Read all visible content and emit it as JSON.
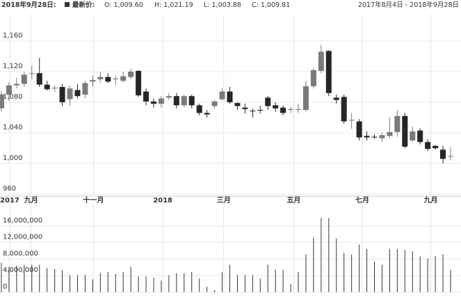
{
  "header": {
    "date": "2018年9月28日:",
    "legend_label": "最新价:",
    "ohlc": [
      "O: 1,009.60",
      "H: 1,021.19",
      "L: 1,003.88",
      "C: 1,009.81"
    ],
    "range": "2017年8月4日 - 2018年9月28日"
  },
  "chart_data": [
    {
      "type": "candlestick",
      "categories": [
        null,
        null,
        null,
        null,
        null,
        null,
        null,
        null,
        null,
        null,
        null,
        null,
        null,
        null,
        null,
        null,
        null,
        null,
        null,
        null,
        null,
        null,
        null,
        null,
        null,
        null,
        null,
        null,
        null,
        null,
        null,
        null,
        null,
        null,
        null,
        null,
        null,
        null,
        null,
        null,
        null,
        null,
        null,
        null,
        null,
        null,
        null,
        null,
        null,
        null,
        null,
        null,
        null,
        null,
        null,
        null,
        null,
        null,
        null,
        null
      ],
      "open": [
        1072,
        1090,
        1102,
        1104,
        1117,
        1118,
        1103,
        1098,
        1100,
        1084,
        1096,
        1090,
        1107,
        1110,
        1113,
        1110,
        1108,
        1113,
        1121,
        1094,
        1081,
        1078,
        1086,
        1088,
        1076,
        1088,
        1076,
        1066,
        1075,
        1084,
        1094,
        1079,
        1073,
        1069,
        1070,
        1086,
        1076,
        1073,
        1070,
        1070,
        1070,
        1101,
        1121,
        1147,
        1086,
        1087,
        1056,
        1055,
        1036,
        1035,
        1033,
        1036,
        1041,
        1062,
        1030,
        1043,
        1028,
        1023,
        1018,
        1009.6
      ],
      "high": [
        1095,
        1106,
        1112,
        1120,
        1128,
        1138,
        1108,
        1102,
        1104,
        1102,
        1104,
        1108,
        1115,
        1120,
        1118,
        1115,
        1120,
        1124,
        1122,
        1098,
        1085,
        1088,
        1092,
        1092,
        1090,
        1090,
        1078,
        1070,
        1083,
        1098,
        1100,
        1080,
        1078,
        1072,
        1075,
        1088,
        1080,
        1076,
        1074,
        1078,
        1108,
        1125,
        1155,
        1148,
        1090,
        1090,
        1066,
        1058,
        1042,
        1038,
        1040,
        1060,
        1070,
        1066,
        1048,
        1046,
        1032,
        1024,
        1023,
        1021.19
      ],
      "low": [
        1068,
        1082,
        1098,
        1100,
        1110,
        1100,
        1095,
        1094,
        1075,
        1075,
        1085,
        1085,
        1100,
        1106,
        1105,
        1102,
        1106,
        1110,
        1087,
        1076,
        1073,
        1073,
        1083,
        1072,
        1073,
        1072,
        1063,
        1060,
        1072,
        1082,
        1078,
        1070,
        1065,
        1060,
        1065,
        1070,
        1067,
        1063,
        1066,
        1066,
        1068,
        1098,
        1118,
        1088,
        1078,
        1052,
        1045,
        1030,
        1030,
        1032,
        1028,
        1033,
        1035,
        1020,
        1028,
        1025,
        1016,
        1018,
        1000,
        1003.88
      ],
      "close": [
        1090,
        1102,
        1104,
        1116,
        1118,
        1103,
        1097,
        1099,
        1080,
        1098,
        1088,
        1105,
        1109,
        1113,
        1107,
        1111,
        1114,
        1120,
        1089,
        1081,
        1078,
        1085,
        1088,
        1076,
        1088,
        1076,
        1066,
        1064,
        1081,
        1094,
        1080,
        1075,
        1071,
        1068,
        1069,
        1075,
        1072,
        1066,
        1071,
        1071,
        1101,
        1122,
        1146,
        1092,
        1083,
        1055,
        1057,
        1034,
        1034,
        1034,
        1037,
        1041,
        1062,
        1022,
        1042,
        1028,
        1019,
        1020,
        1006,
        1009.81
      ],
      "up_color": "#7a7a7a",
      "down_color": "#262626",
      "ylim": [
        960,
        1190
      ],
      "yticks": [
        960,
        {
          "value": 1000,
          "label": "1,000"
        },
        {
          "value": 1040,
          "label": "1,040"
        },
        {
          "value": 1080,
          "label": "1,080"
        },
        {
          "value": 1120,
          "label": "1,120"
        },
        {
          "value": 1160,
          "label": "1,160"
        }
      ],
      "xlim": [
        -0.183,
        60.37
      ],
      "xticks": [
        {
          "value": 1.1,
          "label": "2017"
        },
        {
          "value": 3.9,
          "label": "九月"
        },
        {
          "value": 12.1,
          "label": "十一月"
        },
        {
          "value": 21.2,
          "label": "2018"
        },
        {
          "value": 29.2,
          "label": "三月"
        },
        {
          "value": 38.4,
          "label": "五月"
        },
        {
          "value": 47.4,
          "label": "七月"
        },
        {
          "value": 56.4,
          "label": "九月"
        }
      ],
      "grid": true
    },
    {
      "type": "bar",
      "values": [
        7100000,
        6100000,
        6400000,
        6600000,
        6600000,
        6600000,
        5800000,
        5600000,
        5300000,
        4100000,
        4100000,
        4100000,
        3100000,
        4600000,
        4900000,
        4400000,
        4900000,
        6100000,
        3800000,
        3800000,
        3500000,
        2800000,
        4100000,
        4600000,
        4600000,
        4900000,
        3300000,
        1300000,
        500000,
        4800000,
        6600000,
        4100000,
        4100000,
        4100000,
        3300000,
        6600000,
        5400000,
        5400000,
        2000000,
        4900000,
        9100000,
        13200000,
        17900000,
        17900000,
        13000000,
        9500000,
        9100000,
        11500000,
        10400000,
        7400000,
        6600000,
        10400000,
        10400000,
        10200000,
        9900000,
        8600000,
        8100000,
        8700000,
        9100000,
        5400000
      ],
      "color": "#333333",
      "ylim": [
        0,
        20500000
      ],
      "yticks": [
        0,
        {
          "value": 4000000,
          "label": "4,000,000"
        },
        {
          "value": 8000000,
          "label": "8,000,000"
        },
        {
          "value": 12000000,
          "label": "12,000,000"
        },
        {
          "value": 16000000,
          "label": "16,000,000"
        }
      ],
      "grid": true
    }
  ]
}
